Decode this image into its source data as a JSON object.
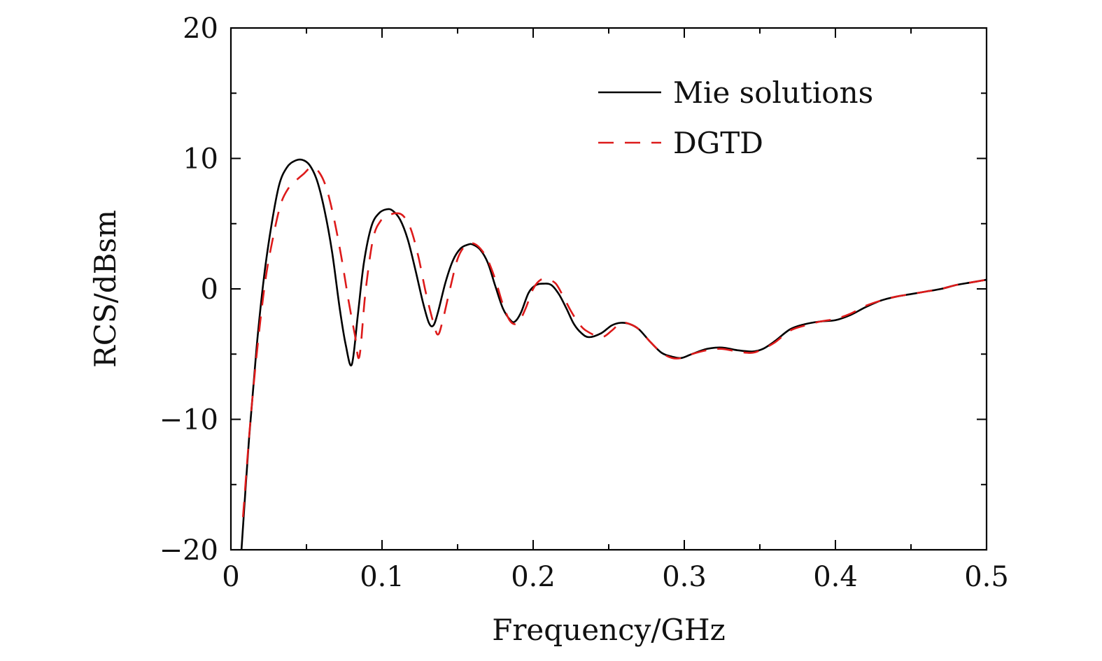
{
  "chart_data": {
    "type": "line",
    "title": "",
    "xlabel": "Frequency/GHz",
    "ylabel": "RCS/dBsm",
    "xlim": [
      0,
      0.5
    ],
    "ylim": [
      -20,
      20
    ],
    "xticks": [
      0,
      0.1,
      0.2,
      0.3,
      0.4,
      0.5
    ],
    "xtick_labels": [
      "0",
      "0.1",
      "0.2",
      "0.3",
      "0.4",
      "0.5"
    ],
    "yticks": [
      -20,
      -10,
      0,
      10,
      20
    ],
    "ytick_labels": [
      "−20",
      "−10",
      "0",
      "10",
      "20"
    ],
    "grid": false,
    "legend_position": "top-right",
    "series": [
      {
        "name": "Mie solutions",
        "color": "#000000",
        "style": "solid",
        "x": [
          0.007,
          0.012,
          0.017,
          0.022,
          0.027,
          0.032,
          0.037,
          0.042,
          0.047,
          0.052,
          0.057,
          0.062,
          0.067,
          0.072,
          0.076,
          0.08,
          0.084,
          0.088,
          0.093,
          0.098,
          0.103,
          0.107,
          0.112,
          0.117,
          0.122,
          0.127,
          0.131,
          0.134,
          0.137,
          0.142,
          0.147,
          0.152,
          0.157,
          0.16,
          0.165,
          0.17,
          0.175,
          0.18,
          0.185,
          0.188,
          0.192,
          0.197,
          0.202,
          0.207,
          0.212,
          0.217,
          0.222,
          0.227,
          0.232,
          0.237,
          0.245,
          0.252,
          0.258,
          0.264,
          0.27,
          0.277,
          0.285,
          0.292,
          0.298,
          0.305,
          0.315,
          0.325,
          0.335,
          0.345,
          0.352,
          0.36,
          0.37,
          0.38,
          0.39,
          0.4,
          0.41,
          0.42,
          0.43,
          0.44,
          0.45,
          0.46,
          0.47,
          0.48,
          0.49,
          0.5
        ],
        "y": [
          -20.0,
          -11.5,
          -4.5,
          1.0,
          5.0,
          8.0,
          9.3,
          9.8,
          9.9,
          9.5,
          8.3,
          6.0,
          2.8,
          -1.5,
          -4.3,
          -5.8,
          -2.0,
          2.0,
          4.8,
          5.8,
          6.1,
          6.0,
          5.3,
          3.8,
          1.5,
          -1.0,
          -2.6,
          -2.8,
          -1.8,
          0.5,
          2.2,
          3.1,
          3.4,
          3.4,
          3.0,
          2.0,
          0.2,
          -1.5,
          -2.4,
          -2.5,
          -1.8,
          -0.3,
          0.3,
          0.4,
          0.3,
          -0.4,
          -1.5,
          -2.7,
          -3.4,
          -3.7,
          -3.4,
          -2.8,
          -2.6,
          -2.7,
          -3.1,
          -4.0,
          -4.9,
          -5.2,
          -5.3,
          -5.0,
          -4.6,
          -4.5,
          -4.7,
          -4.8,
          -4.6,
          -4.0,
          -3.1,
          -2.7,
          -2.5,
          -2.4,
          -2.0,
          -1.4,
          -0.9,
          -0.6,
          -0.4,
          -0.2,
          0.0,
          0.3,
          0.5,
          0.7
        ]
      },
      {
        "name": "DGTD",
        "color": "#dd1a1a",
        "style": "dashed",
        "x": [
          0.008,
          0.013,
          0.018,
          0.023,
          0.028,
          0.033,
          0.038,
          0.043,
          0.048,
          0.053,
          0.058,
          0.063,
          0.068,
          0.073,
          0.078,
          0.082,
          0.085,
          0.089,
          0.094,
          0.099,
          0.104,
          0.109,
          0.114,
          0.119,
          0.124,
          0.129,
          0.134,
          0.137,
          0.14,
          0.145,
          0.15,
          0.155,
          0.16,
          0.165,
          0.17,
          0.175,
          0.18,
          0.185,
          0.19,
          0.195,
          0.2,
          0.205,
          0.21,
          0.215,
          0.22,
          0.225,
          0.23,
          0.235,
          0.245,
          0.252,
          0.258,
          0.264,
          0.27,
          0.277,
          0.285,
          0.292,
          0.298,
          0.305,
          0.315,
          0.325,
          0.335,
          0.345,
          0.352,
          0.36,
          0.37,
          0.38,
          0.39,
          0.4,
          0.41,
          0.42,
          0.43,
          0.44,
          0.45,
          0.46,
          0.47,
          0.48,
          0.49,
          0.5
        ],
        "y": [
          -17.5,
          -10.0,
          -4.0,
          0.8,
          4.0,
          6.5,
          7.7,
          8.3,
          8.8,
          9.3,
          9.0,
          7.8,
          5.5,
          2.5,
          -1.0,
          -3.5,
          -5.2,
          -0.3,
          3.8,
          5.2,
          5.6,
          5.8,
          5.6,
          4.6,
          2.5,
          -0.3,
          -2.6,
          -3.5,
          -2.5,
          0.0,
          2.3,
          3.3,
          3.5,
          3.1,
          2.2,
          0.7,
          -1.2,
          -2.5,
          -2.6,
          -1.5,
          0.0,
          0.7,
          0.7,
          0.4,
          -0.6,
          -1.7,
          -2.6,
          -3.2,
          -3.7,
          -3.2,
          -2.6,
          -2.7,
          -3.1,
          -4.0,
          -4.9,
          -5.3,
          -5.3,
          -5.0,
          -4.7,
          -4.6,
          -4.8,
          -4.9,
          -4.6,
          -4.1,
          -3.2,
          -2.8,
          -2.5,
          -2.3,
          -1.9,
          -1.3,
          -0.9,
          -0.6,
          -0.4,
          -0.2,
          0.0,
          0.3,
          0.5,
          0.7
        ]
      }
    ]
  }
}
